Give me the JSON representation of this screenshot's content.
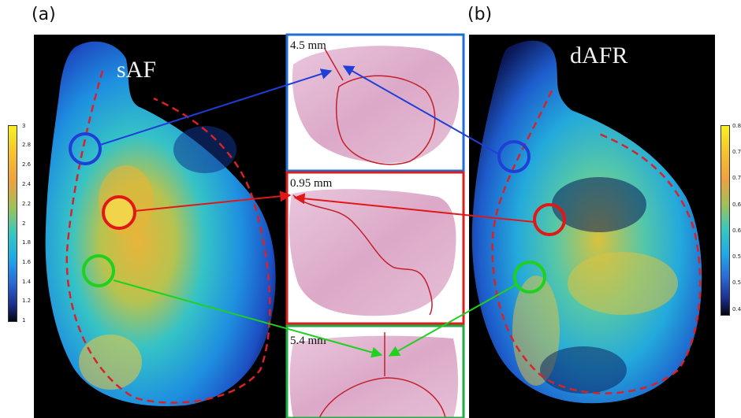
{
  "figure": {
    "labels": {
      "a": "(a)",
      "b": "(b)"
    },
    "maps": {
      "left": {
        "title": "sAF"
      },
      "right": {
        "title": "dAFR"
      }
    },
    "histology": [
      {
        "depth": "4.5 mm",
        "frame_color": "#1f6fd1"
      },
      {
        "depth": "0.95 mm",
        "frame_color": "#d62020"
      },
      {
        "depth": "5.4 mm",
        "frame_color": "#22aa44"
      }
    ],
    "colorbars": {
      "left": {
        "ticks": [
          "3",
          "2.8",
          "2.6",
          "2.4",
          "2.2",
          "2",
          "1.8",
          "1.6",
          "1.4",
          "1.2",
          "1"
        ]
      },
      "right": {
        "ticks": [
          "0.8",
          "0.7",
          "0.7",
          "0.6",
          "0.6",
          "0.5",
          "0.5",
          "0.4"
        ]
      }
    },
    "markers": {
      "blue": "#1f3fd6",
      "red": "#e01818",
      "green": "#1fd11f"
    }
  }
}
